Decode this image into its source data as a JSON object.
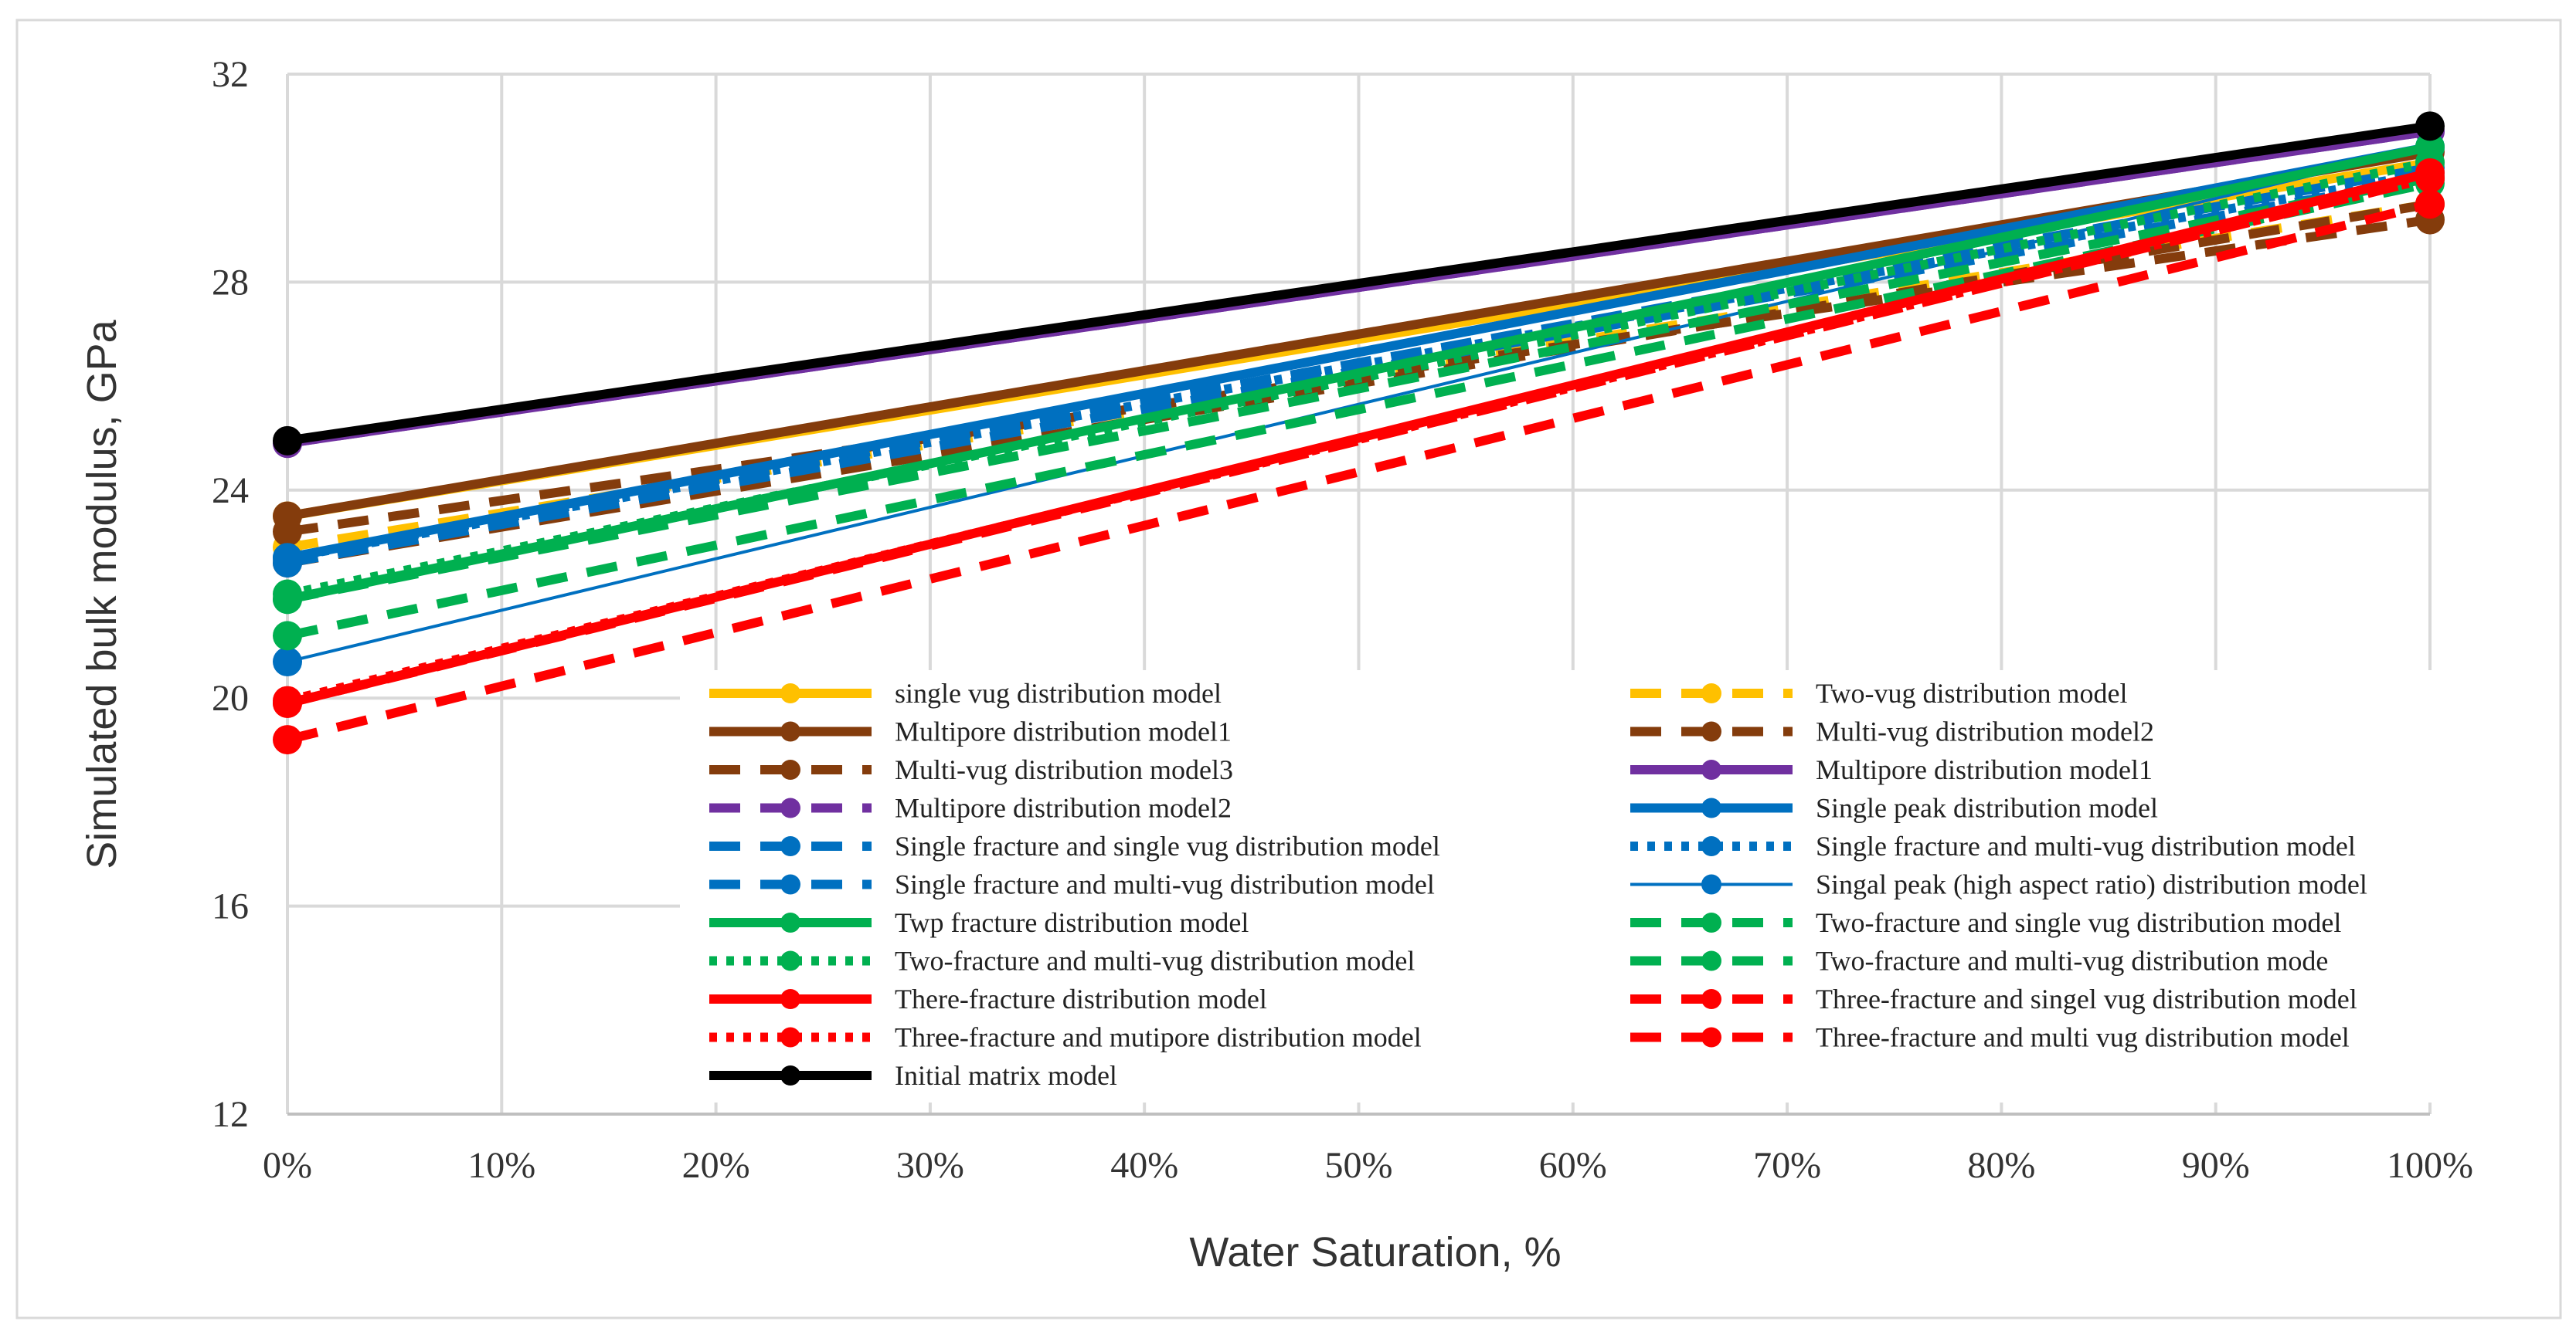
{
  "chart_data": {
    "type": "line",
    "title": "",
    "xlabel": "Water Saturation,   %",
    "ylabel": "Simulated bulk modulus,   GPa",
    "x": [
      0,
      100
    ],
    "xlim": [
      0,
      100
    ],
    "ylim": [
      12,
      32
    ],
    "xticks": [
      0,
      10,
      20,
      30,
      40,
      50,
      60,
      70,
      80,
      90,
      100
    ],
    "xtick_labels": [
      "0%",
      "10%",
      "20%",
      "30%",
      "40%",
      "50%",
      "60%",
      "70%",
      "80%",
      "90%",
      "100%"
    ],
    "yticks": [
      12,
      16,
      20,
      24,
      28,
      32
    ],
    "ytick_labels": [
      "12",
      "16",
      "20",
      "24",
      "28",
      "32"
    ],
    "grid": true,
    "legend_position": "bottom-right inside plot, two columns",
    "series": [
      {
        "name": "single vug distribution model",
        "values": [
          23.5,
          30.3
        ],
        "color": "#FFC000",
        "dash": "solid",
        "weight": "bold"
      },
      {
        "name": "Two-vug distribution model",
        "values": [
          22.9,
          29.5
        ],
        "color": "#FFC000",
        "dash": "dash",
        "weight": "bold"
      },
      {
        "name": "Multipore distribution model1",
        "values": [
          23.5,
          30.5
        ],
        "color": "#843C0C",
        "dash": "solid",
        "weight": "bold"
      },
      {
        "name": "Multi-vug distribution model2",
        "values": [
          23.2,
          29.2
        ],
        "color": "#843C0C",
        "dash": "dash",
        "weight": "bold"
      },
      {
        "name": "Multi-vug distribution model3",
        "values": [
          22.6,
          29.5
        ],
        "color": "#843C0C",
        "dash": "dash",
        "weight": "bold"
      },
      {
        "name": "Multipore distribution model1",
        "values": [
          24.9,
          30.9
        ],
        "color": "#7030A0",
        "dash": "solid",
        "weight": "bold"
      },
      {
        "name": "Multipore distribution model2",
        "values": [
          24.9,
          30.9
        ],
        "color": "#7030A0",
        "dash": "dash",
        "weight": "bold"
      },
      {
        "name": "Single peak distribution model",
        "values": [
          22.7,
          30.6
        ],
        "color": "#0070C0",
        "dash": "solid",
        "weight": "bold"
      },
      {
        "name": "Single fracture and single vug distribution model",
        "values": [
          22.7,
          30.2
        ],
        "color": "#0070C0",
        "dash": "dash",
        "weight": "bold"
      },
      {
        "name": "Single fracture and multi-vug distribution model",
        "values": [
          22.7,
          30.1
        ],
        "color": "#0070C0",
        "dash": "dot",
        "weight": "bold"
      },
      {
        "name": "Single fracture and multi-vug distribution model",
        "values": [
          22.6,
          30.0
        ],
        "color": "#0070C0",
        "dash": "dash",
        "weight": "bold"
      },
      {
        "name": "Singal peak (high aspect ratio) distribution model",
        "values": [
          20.7,
          30.6
        ],
        "color": "#0070C0",
        "dash": "solid",
        "weight": "thin"
      },
      {
        "name": "Twp fracture distribution model",
        "values": [
          21.9,
          30.6
        ],
        "color": "#00B050",
        "dash": "solid",
        "weight": "bold"
      },
      {
        "name": "Two-fracture and single vug distribution model",
        "values": [
          21.9,
          30.0
        ],
        "color": "#00B050",
        "dash": "dash",
        "weight": "bold"
      },
      {
        "name": "Two-fracture and multi-vug distribution model",
        "values": [
          22.0,
          30.3
        ],
        "color": "#00B050",
        "dash": "dot",
        "weight": "bold"
      },
      {
        "name": "Two-fracture and multi-vug distribution mode",
        "values": [
          21.2,
          29.9
        ],
        "color": "#00B050",
        "dash": "dash",
        "weight": "bold"
      },
      {
        "name": "There-fracture distribution model",
        "values": [
          19.9,
          30.1
        ],
        "color": "#FF0000",
        "dash": "solid",
        "weight": "bold"
      },
      {
        "name": "Three-fracture and singel vug distribution model",
        "values": [
          19.9,
          30.0
        ],
        "color": "#FF0000",
        "dash": "dash",
        "weight": "bold"
      },
      {
        "name": "Three-fracture and mutipore distribution model",
        "values": [
          19.95,
          30.0
        ],
        "color": "#FF0000",
        "dash": "dot",
        "weight": "bold"
      },
      {
        "name": "Three-fracture and multi vug distribution model",
        "values": [
          19.2,
          29.5
        ],
        "color": "#FF0000",
        "dash": "dash",
        "weight": "bold"
      },
      {
        "name": "Initial matrix model",
        "values": [
          24.95,
          31.0
        ],
        "color": "#000000",
        "dash": "solid",
        "weight": "bold"
      }
    ]
  }
}
